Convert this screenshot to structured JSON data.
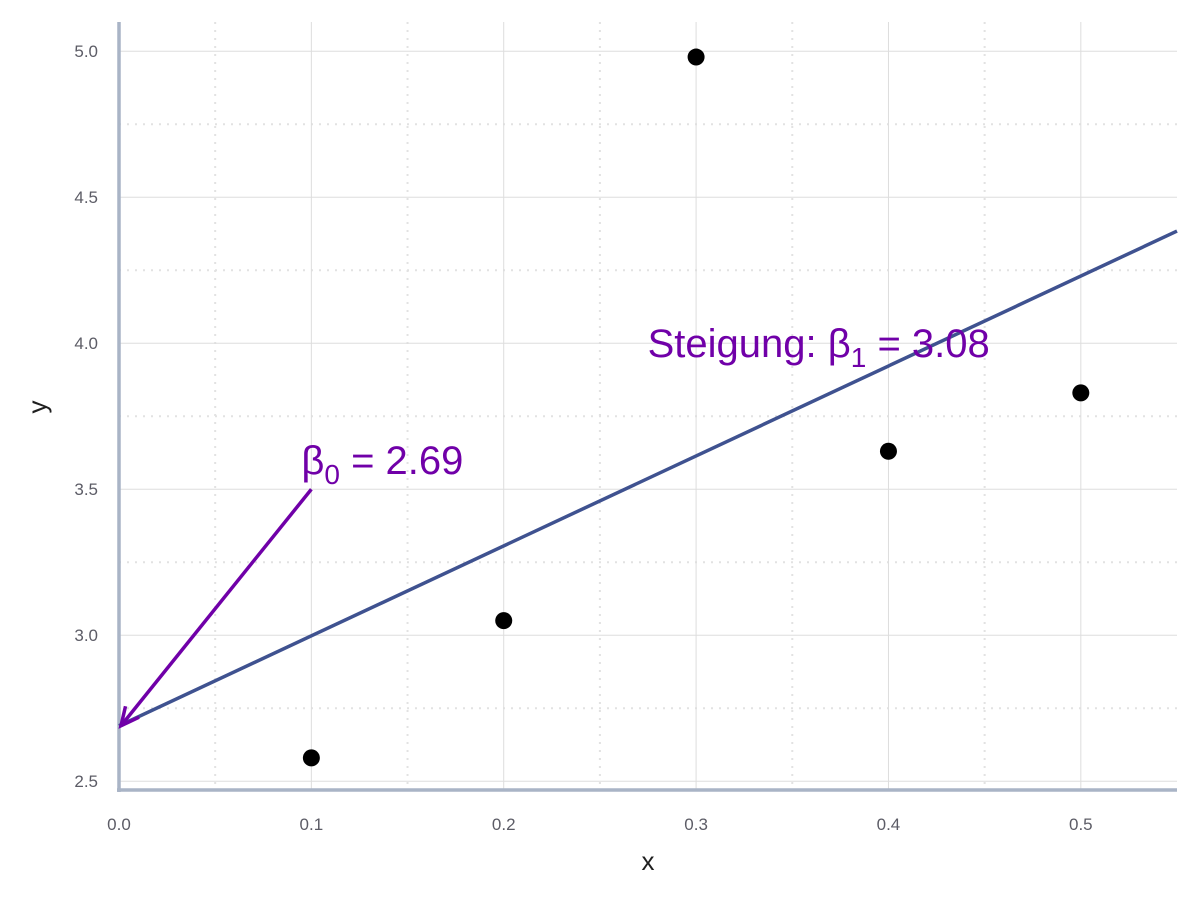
{
  "chart_data": {
    "type": "scatter",
    "xlabel": "x",
    "ylabel": "y",
    "xlim": [
      0.0,
      0.55
    ],
    "ylim": [
      2.47,
      5.1
    ],
    "x_ticks": [
      "0.0",
      "0.1",
      "0.2",
      "0.3",
      "0.4",
      "0.5"
    ],
    "y_ticks": [
      "2.5",
      "3.0",
      "3.5",
      "4.0",
      "4.5",
      "5.0"
    ],
    "grid": true,
    "points": [
      {
        "x": 0.1,
        "y": 2.58
      },
      {
        "x": 0.2,
        "y": 3.05
      },
      {
        "x": 0.3,
        "y": 4.98
      },
      {
        "x": 0.4,
        "y": 3.63
      },
      {
        "x": 0.5,
        "y": 3.83
      }
    ],
    "regression_line": {
      "intercept": 2.69,
      "slope": 3.08
    },
    "annotations": {
      "slope": {
        "prefix": "Steigung: ",
        "symbol": "β",
        "subscript": "1",
        "suffix": " = 3.08",
        "x": 0.28,
        "y": 4.0
      },
      "intercept": {
        "symbol": "β",
        "subscript": "0",
        "suffix": " = 2.69",
        "x": 0.1,
        "y": 3.6
      },
      "intercept_arrow": {
        "from": {
          "x": 0.1,
          "y": 3.5
        },
        "to": {
          "x": 0.0,
          "y": 2.69
        }
      }
    },
    "colors": {
      "line": "#3f5290",
      "points": "#000000",
      "annotation": "#7000a8",
      "axis": "#a9b4c6",
      "grid_major": "#dddddd",
      "grid_minor": "#e2e2e2"
    }
  }
}
